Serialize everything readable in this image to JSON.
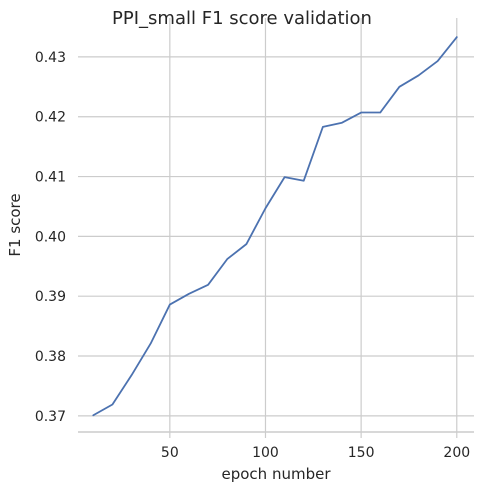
{
  "chart_data": {
    "type": "line",
    "title": "PPI_small F1 score validation",
    "xlabel": "epoch number",
    "ylabel": "F1 score",
    "xlim": [
      2,
      209
    ],
    "ylim": [
      0.3673,
      0.4365
    ],
    "x_ticks": [
      50,
      100,
      150,
      200
    ],
    "y_ticks": [
      0.37,
      0.38,
      0.39,
      0.4,
      0.41,
      0.42,
      0.43
    ],
    "x_tick_labels": [
      "50",
      "100",
      "150",
      "200"
    ],
    "y_tick_labels": [
      "0.37",
      "0.38",
      "0.39",
      "0.40",
      "0.41",
      "0.42",
      "0.43"
    ],
    "grid": true,
    "colors": {
      "line": "#4c72b0",
      "grid": "#cccccc",
      "axis": "#cccccc",
      "text": "#262626"
    },
    "series": [
      {
        "x": [
          10,
          20,
          30,
          40,
          50,
          60,
          70,
          80,
          90,
          100,
          110,
          120,
          130,
          140,
          150,
          160,
          170,
          180,
          190,
          200
        ],
        "values": [
          0.3701,
          0.3719,
          0.3768,
          0.3821,
          0.3886,
          0.3904,
          0.3919,
          0.3962,
          0.3987,
          0.4047,
          0.4099,
          0.4093,
          0.4183,
          0.419,
          0.4207,
          0.4207,
          0.425,
          0.4269,
          0.4293,
          0.4333
        ]
      }
    ]
  }
}
